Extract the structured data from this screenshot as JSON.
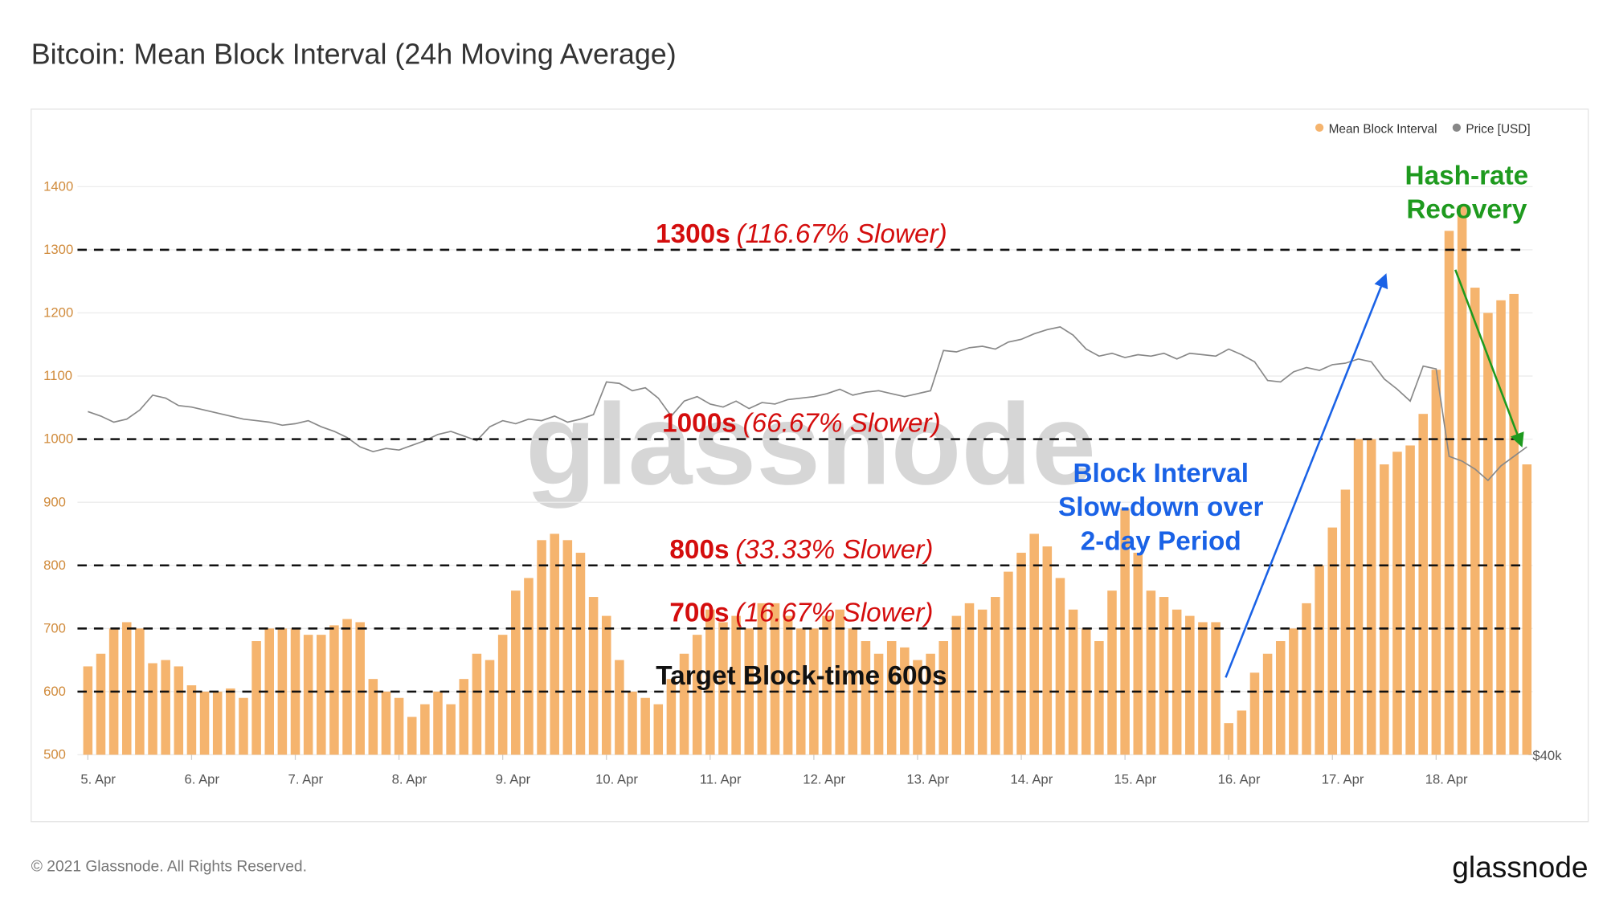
{
  "chart_data": {
    "type": "bar",
    "title": "Bitcoin: Mean Block Interval (24h Moving Average)",
    "x": [
      0,
      0.125,
      0.25,
      0.375,
      0.5,
      0.625,
      0.75,
      0.875,
      1,
      1.125,
      1.25,
      1.375,
      1.5,
      1.625,
      1.75,
      1.875,
      2,
      2.125,
      2.25,
      2.375,
      2.5,
      2.625,
      2.75,
      2.875,
      3,
      3.125,
      3.25,
      3.375,
      3.5,
      3.625,
      3.75,
      3.875,
      4,
      4.125,
      4.25,
      4.375,
      4.5,
      4.625,
      4.75,
      4.875,
      5,
      5.125,
      5.25,
      5.375,
      5.5,
      5.625,
      5.75,
      5.875,
      6,
      6.125,
      6.25,
      6.375,
      6.5,
      6.625,
      6.75,
      6.875,
      7,
      7.125,
      7.25,
      7.375,
      7.5,
      7.625,
      7.75,
      7.875,
      8,
      8.125,
      8.25,
      8.375,
      8.5,
      8.625,
      8.75,
      8.875,
      9,
      9.125,
      9.25,
      9.375,
      9.5,
      9.625,
      9.75,
      9.875,
      10,
      10.125,
      10.25,
      10.375,
      10.5,
      10.625,
      10.75,
      10.875,
      11,
      11.125,
      11.25,
      11.375,
      11.5,
      11.625,
      11.75,
      11.875,
      12,
      12.125,
      12.25,
      12.375,
      12.5,
      12.625,
      12.75,
      12.875,
      13,
      13.125,
      13.25,
      13.375,
      13.5,
      13.625,
      13.75,
      13.875
    ],
    "series": [
      {
        "name": "Mean Block Interval",
        "color": "#f5b46e",
        "values": [
          640,
          660,
          700,
          710,
          700,
          645,
          650,
          640,
          610,
          600,
          600,
          605,
          590,
          680,
          700,
          700,
          700,
          690,
          690,
          705,
          715,
          710,
          620,
          600,
          590,
          560,
          580,
          600,
          580,
          620,
          660,
          650,
          690,
          760,
          780,
          840,
          850,
          840,
          820,
          750,
          720,
          650,
          600,
          590,
          580,
          620,
          660,
          690,
          730,
          710,
          720,
          700,
          740,
          740,
          720,
          700,
          700,
          720,
          730,
          700,
          680,
          660,
          680,
          670,
          650,
          660,
          680,
          720,
          740,
          730,
          750,
          790,
          820,
          850,
          830,
          780,
          730,
          700,
          680,
          760,
          890,
          820,
          760,
          750,
          730,
          720,
          710,
          710,
          550,
          570,
          630,
          660,
          680,
          700,
          740,
          800,
          860,
          920,
          1000,
          1000,
          960,
          980,
          990,
          1040,
          1110,
          1330,
          1370,
          1240,
          1200,
          1220,
          1230,
          960
        ]
      },
      {
        "name": "Price [USD]",
        "color": "#888888",
        "axis": "y2",
        "values": [
          58900,
          58600,
          58200,
          58400,
          59000,
          60000,
          59800,
          59300,
          59200,
          59000,
          58800,
          58600,
          58400,
          58300,
          58200,
          58000,
          58100,
          58300,
          57900,
          57600,
          57200,
          56600,
          56300,
          56500,
          56400,
          56700,
          57000,
          57400,
          57600,
          57300,
          57000,
          57900,
          58300,
          58100,
          58400,
          58300,
          58600,
          58200,
          58400,
          58700,
          60900,
          60800,
          60300,
          60500,
          59800,
          58600,
          59600,
          59900,
          59400,
          59200,
          59600,
          59100,
          59500,
          59400,
          59700,
          59800,
          59900,
          60100,
          60400,
          60000,
          60200,
          60300,
          60100,
          59900,
          60100,
          60300,
          63100,
          63000,
          63300,
          63400,
          63200,
          63700,
          63900,
          64300,
          64600,
          64800,
          64200,
          63200,
          62700,
          62900,
          62600,
          62800,
          62700,
          62900,
          62500,
          62900,
          62800,
          62700,
          63200,
          62800,
          62300,
          61000,
          60900,
          61600,
          61900,
          61700,
          62100,
          62200,
          62500,
          62300,
          61100,
          60400,
          59600,
          62000,
          61800,
          56000,
          55700,
          55200,
          54500,
          55400,
          56000,
          56600
        ]
      }
    ],
    "xlim": [
      -0.1,
      13.93
    ],
    "xticks": [
      {
        "value": 0,
        "label": "5. Apr"
      },
      {
        "value": 1,
        "label": "6. Apr"
      },
      {
        "value": 2,
        "label": "7. Apr"
      },
      {
        "value": 3,
        "label": "8. Apr"
      },
      {
        "value": 4,
        "label": "9. Apr"
      },
      {
        "value": 5,
        "label": "10. Apr"
      },
      {
        "value": 6,
        "label": "11. Apr"
      },
      {
        "value": 7,
        "label": "12. Apr"
      },
      {
        "value": 8,
        "label": "13. Apr"
      },
      {
        "value": 9,
        "label": "14. Apr"
      },
      {
        "value": 10,
        "label": "15. Apr"
      },
      {
        "value": 11,
        "label": "16. Apr"
      },
      {
        "value": 12,
        "label": "17. Apr"
      },
      {
        "value": 13,
        "label": "18. Apr"
      }
    ],
    "ylim": [
      500,
      1500
    ],
    "yticks": [
      500,
      600,
      700,
      800,
      900,
      1000,
      1100,
      1200,
      1300,
      1400
    ],
    "y2lim": [
      40000,
      81500
    ],
    "y2ticks": [
      {
        "value": 40000,
        "label": "$40k"
      }
    ],
    "y2log": true,
    "grid": true,
    "legend": "top-right",
    "reference_lines": [
      {
        "value": 1300,
        "label": "1300s",
        "detail": "(116.67% Slower)"
      },
      {
        "value": 1000,
        "label": "1000s",
        "detail": "(66.67% Slower)"
      },
      {
        "value": 800,
        "label": "800s",
        "detail": "(33.33% Slower)"
      },
      {
        "value": 700,
        "label": "700s",
        "detail": "(16.67% Slower)"
      },
      {
        "value": 600,
        "label": "Target Block-time 600s"
      }
    ],
    "annotations": [
      {
        "lines": [
          "Block Interval",
          "Slow-down over",
          "2-day Period"
        ],
        "color": "#1a62e6"
      },
      {
        "lines": [
          "Hash-rate",
          "Recovery"
        ],
        "color": "#1e9a1e"
      }
    ],
    "watermark": "glassnode",
    "footer": "© 2021 Glassnode. All Rights Reserved.",
    "logo": "glassnode"
  }
}
